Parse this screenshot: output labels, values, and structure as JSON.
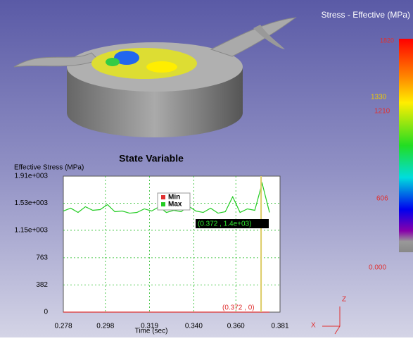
{
  "chart_data": {
    "type": "line",
    "title": "State Variable",
    "y_label": "Effective Stress (MPa)",
    "x_label": "Time (sec)",
    "x": [
      0.278,
      0.2815,
      0.285,
      0.2885,
      0.292,
      0.2955,
      0.299,
      0.3025,
      0.306,
      0.3095,
      0.313,
      0.3165,
      0.32,
      0.3235,
      0.327,
      0.3305,
      0.334,
      0.3375,
      0.341,
      0.3445,
      0.348,
      0.3515,
      0.355,
      0.3585,
      0.362,
      0.3655,
      0.369,
      0.3725,
      0.376
    ],
    "series": [
      {
        "name": "Min",
        "color": "#e03030",
        "values": [
          0,
          0,
          0,
          0,
          0,
          0,
          0,
          0,
          0,
          0,
          0,
          0,
          0,
          0,
          0,
          0,
          0,
          0,
          0,
          0,
          0,
          0,
          0,
          0,
          0,
          0,
          0,
          0,
          0
        ]
      },
      {
        "name": "Max",
        "color": "#22cc22",
        "values": [
          1420,
          1460,
          1400,
          1480,
          1430,
          1440,
          1510,
          1410,
          1420,
          1390,
          1400,
          1450,
          1420,
          1480,
          1400,
          1430,
          1410,
          1490,
          1420,
          1400,
          1460,
          1390,
          1410,
          1620,
          1400,
          1450,
          1430,
          1810,
          1400
        ]
      }
    ],
    "xlim": [
      0.278,
      0.381
    ],
    "xticks": [
      0.278,
      0.298,
      0.319,
      {
        "value": 0.34,
        "label": "0.340"
      },
      {
        "value": 0.36,
        "label": "0.360"
      },
      0.381
    ],
    "ylim": [
      0,
      1910
    ],
    "yticks": [
      0,
      382,
      763,
      {
        "value": 1150,
        "label": "1.15e+003"
      },
      {
        "value": 1530,
        "label": "1.53e+003"
      },
      {
        "value": 1910,
        "label": "1.91e+003"
      }
    ],
    "grid": true,
    "cursor_x": 0.372,
    "annotations": [
      "(0.372 , 1.4e+03)",
      "(0.372 , 0)"
    ]
  },
  "colorbar": {
    "title": "Stress - Effective (MPa)",
    "labels": [
      "1820",
      "1330",
      "1210",
      "606",
      "0.000"
    ]
  },
  "axes_triad": [
    "Z",
    "X"
  ]
}
